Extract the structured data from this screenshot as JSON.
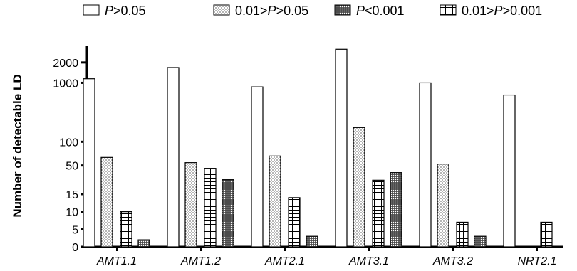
{
  "chart_data": {
    "type": "bar",
    "ylabel": "Number of detectable LD",
    "categories": [
      "AMT1.1",
      "AMT1.2",
      "AMT2.1",
      "AMT3.1",
      "AMT3.2",
      "NRT2.1"
    ],
    "y_axis_breaks": [
      {
        "ylim": [
          0,
          16
        ],
        "ticks": [
          0,
          5,
          10,
          15
        ]
      },
      {
        "ylim": [
          30,
          150
        ],
        "ticks": [
          50,
          100
        ]
      },
      {
        "ylim": [
          0,
          2800
        ],
        "ticks": [
          1000,
          2000
        ]
      }
    ],
    "series": [
      {
        "name_prefix": "",
        "name_italic": "P",
        "name_suffix": ">0.05",
        "pattern": "open",
        "values": [
          1200,
          1750,
          800,
          2650,
          1000,
          400
        ]
      },
      {
        "name_prefix": "0.01>",
        "name_italic": "P",
        "name_suffix": ">0.05",
        "pattern": "dots",
        "values": [
          67,
          56,
          70,
          130,
          53,
          0
        ]
      },
      {
        "name_prefix": "",
        "name_italic": "P",
        "name_suffix": "<0.001",
        "pattern": "dense",
        "values": [
          2,
          20,
          3,
          35,
          3,
          0
        ]
      },
      {
        "name_prefix": "0.01>",
        "name_italic": "P",
        "name_suffix": ">0.001",
        "pattern": "grid",
        "values": [
          10,
          44,
          14,
          19,
          7,
          7
        ]
      }
    ],
    "series_order_in_group": [
      0,
      1,
      3,
      2
    ],
    "legend_position": "top"
  }
}
